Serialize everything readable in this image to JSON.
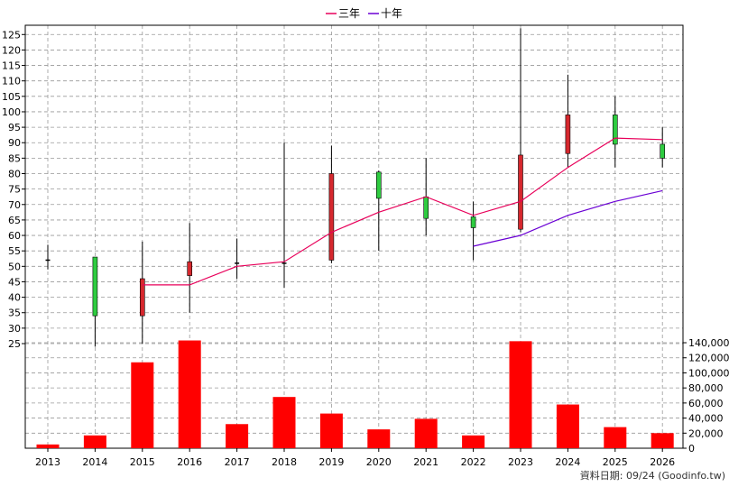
{
  "chart_data": {
    "type": "candlestick",
    "years": [
      "2013",
      "2014",
      "2015",
      "2016",
      "2017",
      "2018",
      "2019",
      "2020",
      "2021",
      "2022",
      "2023",
      "2024",
      "2025",
      "2026"
    ],
    "price_axis": {
      "ylim": [
        25,
        128
      ],
      "ticks": [
        25,
        30,
        35,
        40,
        45,
        50,
        55,
        60,
        65,
        70,
        75,
        80,
        85,
        90,
        95,
        100,
        105,
        110,
        115,
        120,
        125
      ]
    },
    "volume_axis": {
      "ylim": [
        0,
        152000
      ],
      "ticks": [
        0,
        20000,
        40000,
        60000,
        80000,
        100000,
        120000,
        140000
      ],
      "tick_labels": [
        "0",
        "20,000",
        "40,000",
        "60,000",
        "80,000",
        "100,000",
        "120,000",
        "140,000"
      ]
    },
    "candles": [
      {
        "year": "2013",
        "open": 52,
        "close": 52,
        "high": 57,
        "low": 49
      },
      {
        "year": "2014",
        "open": 34,
        "close": 53,
        "high": 53,
        "low": 24
      },
      {
        "year": "2015",
        "open": 46,
        "close": 34,
        "high": 58,
        "low": 25
      },
      {
        "year": "2016",
        "open": 51.5,
        "close": 47,
        "high": 64,
        "low": 35
      },
      {
        "year": "2017",
        "open": 51,
        "close": 51,
        "high": 59,
        "low": 46
      },
      {
        "year": "2018",
        "open": 51,
        "close": 51,
        "high": 90,
        "low": 43
      },
      {
        "year": "2019",
        "open": 80,
        "close": 52,
        "high": 89,
        "low": 51
      },
      {
        "year": "2020",
        "open": 72,
        "close": 80.5,
        "high": 81,
        "low": 55
      },
      {
        "year": "2021",
        "open": 65.5,
        "close": 72.5,
        "high": 85,
        "low": 60
      },
      {
        "year": "2022",
        "open": 62.5,
        "close": 66,
        "high": 71,
        "low": 52
      },
      {
        "year": "2023",
        "open": 86,
        "close": 62,
        "high": 127,
        "low": 61
      },
      {
        "year": "2024",
        "open": 99,
        "close": 86.5,
        "high": 112,
        "low": 82
      },
      {
        "year": "2025",
        "open": 89.5,
        "close": 99,
        "high": 105,
        "low": 82
      },
      {
        "year": "2026",
        "open": 85,
        "close": 89.5,
        "high": 95,
        "low": 82
      }
    ],
    "volume": [
      5000,
      17000,
      114000,
      143000,
      32000,
      68000,
      46000,
      25000,
      39000,
      17000,
      142000,
      58000,
      28000,
      20000
    ],
    "series": [
      {
        "name": "三年",
        "color": "#e8005a",
        "values": [
          null,
          null,
          44,
          44,
          50,
          51.5,
          61,
          67.5,
          72.5,
          66.5,
          71,
          82,
          91.5,
          91
        ]
      },
      {
        "name": "十年",
        "color": "#6a00d4",
        "values": [
          null,
          null,
          null,
          null,
          null,
          null,
          null,
          null,
          null,
          56.5,
          60,
          66.5,
          71,
          74.5
        ]
      }
    ],
    "legend_position": "top-center",
    "grid": true,
    "colors": {
      "up": "#2ecc40",
      "down": "#d6282e",
      "volume": "#ff0000",
      "grid": "#999999"
    }
  },
  "footer": {
    "text": "資料日期: 09/24  (Goodinfo.tw)"
  }
}
